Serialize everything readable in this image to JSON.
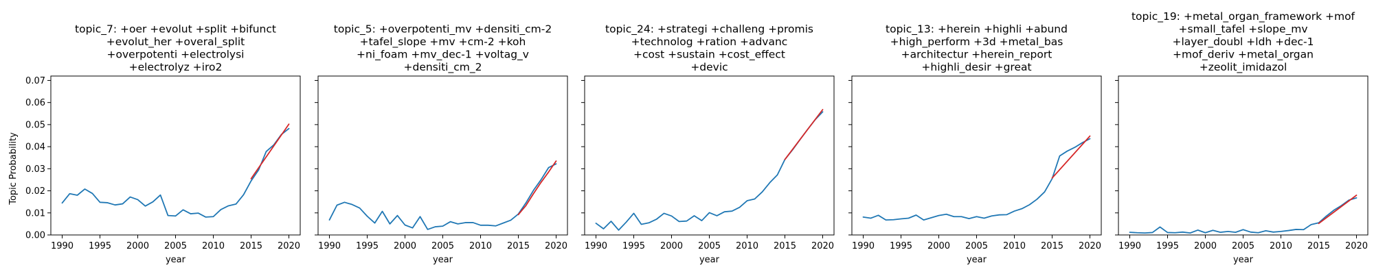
{
  "figure": {
    "ylabel": "Topic Probability"
  },
  "colors": {
    "series": "#1f77b4",
    "fit": "#d62728",
    "axis": "#000000"
  },
  "chart_data": [
    {
      "type": "line",
      "title": [
        "topic_7: +oer +evolut +split +bifunct",
        "+evolut_her +overal_split",
        "+overpotenti +electrolysi",
        "+electrolyz +iro2"
      ],
      "xlabel": "year",
      "ylabel": "Topic Probability",
      "xlim": [
        1988.5,
        2021.5
      ],
      "ylim": [
        0,
        0.072
      ],
      "xticks": [
        "1990",
        "1995",
        "2000",
        "2005",
        "2010",
        "2015",
        "2020"
      ],
      "yticks": [
        "0.00",
        "0.01",
        "0.02",
        "0.03",
        "0.04",
        "0.05",
        "0.06",
        "0.07"
      ],
      "series": [
        {
          "x": [
            1990,
            1991,
            1992,
            1993,
            1994,
            1995,
            1996,
            1997,
            1998,
            1999,
            2000,
            2001,
            2002,
            2003,
            2004,
            2005,
            2006,
            2007,
            2008,
            2009,
            2010,
            2011,
            2012,
            2013,
            2014,
            2015,
            2016,
            2017,
            2018,
            2019,
            2020
          ],
          "values": [
            0.0145,
            0.0187,
            0.018,
            0.0208,
            0.0188,
            0.0148,
            0.0146,
            0.0136,
            0.0141,
            0.0172,
            0.016,
            0.0131,
            0.015,
            0.0181,
            0.0088,
            0.0086,
            0.0114,
            0.0096,
            0.0099,
            0.0081,
            0.0083,
            0.0115,
            0.0132,
            0.014,
            0.0182,
            0.0245,
            0.0295,
            0.0378,
            0.0408,
            0.0455,
            0.0482
          ]
        },
        {
          "x": [
            2015,
            2020
          ],
          "values": [
            0.0255,
            0.0502
          ]
        }
      ]
    },
    {
      "type": "line",
      "title": [
        "topic_5: +overpotenti_mv +densiti_cm-2",
        "+tafel_slope +mv +cm-2 +koh",
        "+ni_foam +mv_dec-1 +voltag_v",
        "+densiti_cm_2"
      ],
      "xlabel": "year",
      "ylim": [
        0,
        0.072
      ],
      "xticks": [
        "1990",
        "1995",
        "2000",
        "2005",
        "2010",
        "2015",
        "2020"
      ],
      "series": [
        {
          "x": [
            1990,
            1991,
            1992,
            1993,
            1994,
            1995,
            1996,
            1997,
            1998,
            1999,
            2000,
            2001,
            2002,
            2003,
            2004,
            2005,
            2006,
            2007,
            2008,
            2009,
            2010,
            2011,
            2012,
            2013,
            2014,
            2015,
            2016,
            2017,
            2018,
            2019,
            2020
          ],
          "values": [
            0.0068,
            0.0135,
            0.0148,
            0.0138,
            0.0122,
            0.0085,
            0.0054,
            0.0107,
            0.005,
            0.0088,
            0.0045,
            0.0032,
            0.0083,
            0.0025,
            0.0037,
            0.004,
            0.006,
            0.005,
            0.0056,
            0.0056,
            0.0044,
            0.0044,
            0.0041,
            0.0054,
            0.0067,
            0.0095,
            0.0145,
            0.0202,
            0.025,
            0.0305,
            0.0322
          ]
        },
        {
          "x": [
            2015,
            2016,
            2017,
            2018,
            2019,
            2020
          ],
          "values": [
            0.0092,
            0.0133,
            0.0187,
            0.0238,
            0.0285,
            0.0335
          ]
        }
      ]
    },
    {
      "type": "line",
      "title": [
        "topic_24: +strategi +challeng +promis",
        "+technolog +ration +advanc",
        "+cost +sustain +cost_effect",
        "+devic"
      ],
      "xlabel": "year",
      "ylim": [
        0,
        0.072
      ],
      "xticks": [
        "1990",
        "1995",
        "2000",
        "2005",
        "2010",
        "2015",
        "2020"
      ],
      "series": [
        {
          "x": [
            1990,
            1991,
            1992,
            1993,
            1994,
            1995,
            1996,
            1997,
            1998,
            1999,
            2000,
            2001,
            2002,
            2003,
            2004,
            2005,
            2006,
            2007,
            2008,
            2009,
            2010,
            2011,
            2012,
            2013,
            2014,
            2015,
            2016,
            2017,
            2018,
            2019,
            2020
          ],
          "values": [
            0.0053,
            0.0028,
            0.0062,
            0.0022,
            0.0058,
            0.0098,
            0.0048,
            0.0055,
            0.0071,
            0.0098,
            0.0086,
            0.0061,
            0.0063,
            0.0087,
            0.0065,
            0.0101,
            0.0087,
            0.0105,
            0.0108,
            0.0125,
            0.0155,
            0.0163,
            0.0195,
            0.0237,
            0.0272,
            0.0342,
            0.0385,
            0.0432,
            0.0478,
            0.0522,
            0.0558
          ]
        },
        {
          "x": [
            2015,
            2020
          ],
          "values": [
            0.0342,
            0.0568
          ]
        }
      ]
    },
    {
      "type": "line",
      "title": [
        "topic_13: +herein +highli +abund",
        "+high_perform +3d +metal_bas",
        "+architectur +herein_report",
        "+highli_desir +great"
      ],
      "xlabel": "year",
      "ylim": [
        0,
        0.072
      ],
      "xticks": [
        "1990",
        "1995",
        "2000",
        "2005",
        "2010",
        "2015",
        "2020"
      ],
      "series": [
        {
          "x": [
            1990,
            1991,
            1992,
            1993,
            1994,
            1995,
            1996,
            1997,
            1998,
            1999,
            2000,
            2001,
            2002,
            2003,
            2004,
            2005,
            2006,
            2007,
            2008,
            2009,
            2010,
            2011,
            2012,
            2013,
            2014,
            2015,
            2016,
            2017,
            2018,
            2019,
            2020
          ],
          "values": [
            0.0081,
            0.0076,
            0.0089,
            0.0068,
            0.0069,
            0.0073,
            0.0076,
            0.009,
            0.0068,
            0.0078,
            0.0088,
            0.0094,
            0.0083,
            0.0083,
            0.0074,
            0.0083,
            0.0076,
            0.0086,
            0.0091,
            0.0092,
            0.0108,
            0.0119,
            0.0137,
            0.0162,
            0.0195,
            0.0255,
            0.0358,
            0.038,
            0.0397,
            0.0418,
            0.0436
          ]
        },
        {
          "x": [
            2015,
            2020
          ],
          "values": [
            0.0258,
            0.0448
          ]
        }
      ]
    },
    {
      "type": "line",
      "title": [
        "topic_19: +metal_organ_framework +mof",
        "+small_tafel +slope_mv",
        "+layer_doubl +ldh +dec-1",
        "+mof_deriv +metal_organ",
        "+zeolit_imidazol"
      ],
      "xlabel": "year",
      "ylim": [
        0,
        0.072
      ],
      "xticks": [
        "1990",
        "1995",
        "2000",
        "2005",
        "2010",
        "2015",
        "2020"
      ],
      "series": [
        {
          "x": [
            1990,
            1991,
            1992,
            1993,
            1994,
            1995,
            1996,
            1997,
            1998,
            1999,
            2000,
            2001,
            2002,
            2003,
            2004,
            2005,
            2006,
            2007,
            2008,
            2009,
            2010,
            2011,
            2012,
            2013,
            2014,
            2015,
            2016,
            2017,
            2018,
            2019,
            2020
          ],
          "values": [
            0.0012,
            0.001,
            0.0009,
            0.0011,
            0.0036,
            0.0011,
            0.001,
            0.0013,
            0.0009,
            0.0022,
            0.001,
            0.0021,
            0.0012,
            0.0016,
            0.0012,
            0.0024,
            0.0013,
            0.001,
            0.0019,
            0.0013,
            0.0016,
            0.002,
            0.0025,
            0.0024,
            0.0047,
            0.0055,
            0.0085,
            0.0112,
            0.0133,
            0.0158,
            0.0168
          ]
        },
        {
          "x": [
            2015,
            2020
          ],
          "values": [
            0.0052,
            0.018
          ]
        }
      ]
    }
  ]
}
